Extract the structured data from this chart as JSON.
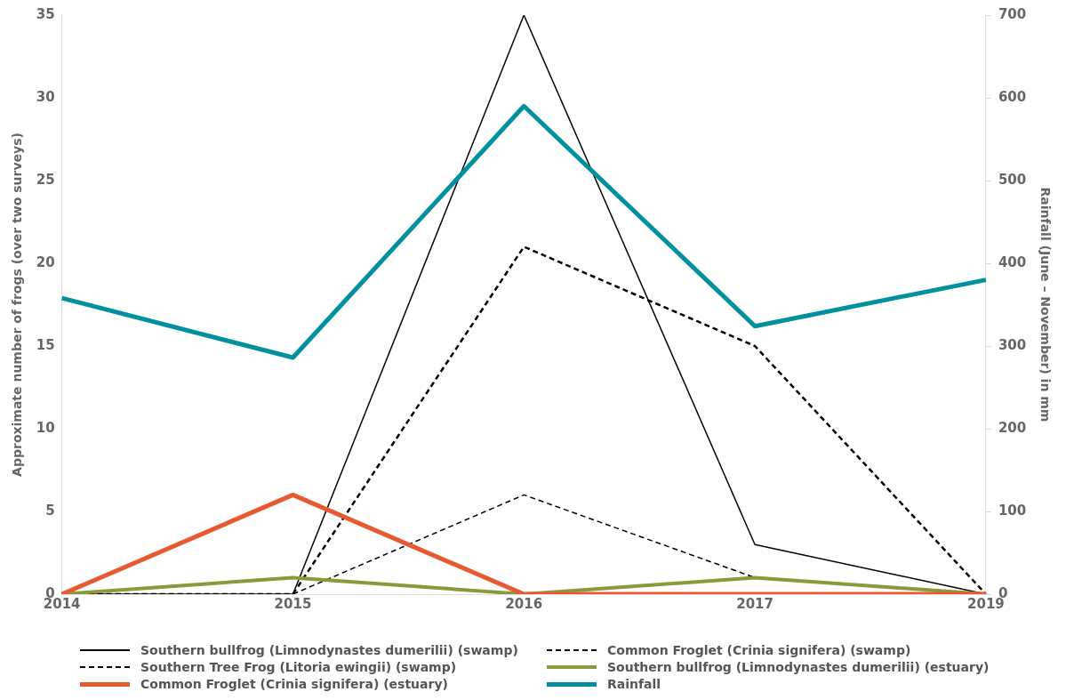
{
  "chart_data": {
    "type": "line",
    "categories": [
      "2014",
      "2015",
      "2016",
      "2017",
      "2019"
    ],
    "ylabel": "Approximate number of frogs (over two surveys)",
    "y2label": "Rainfall (June – November) in mm",
    "ylim": [
      0,
      35
    ],
    "yticks": [
      0,
      5,
      10,
      15,
      20,
      25,
      30,
      35
    ],
    "y2lim": [
      0,
      700
    ],
    "y2ticks": [
      0,
      100,
      200,
      300,
      400,
      500,
      600,
      700
    ],
    "grid": false,
    "legend": "bottom",
    "marker": "none",
    "series": [
      {
        "name": "Southern bullfrog (Limnodynastes dumerilii) (swamp)",
        "color": "#000000",
        "line_style": "solid",
        "values": [
          0,
          0,
          35,
          3,
          0
        ]
      },
      {
        "name": "Common Froglet (Crinia signifera) (swamp)",
        "color": "#000000",
        "line_style": "dashed",
        "values": [
          0,
          0,
          21,
          15,
          0
        ]
      },
      {
        "name": "Southern Tree Frog (Litoria ewingii) (swamp)",
        "color": "#000000",
        "line_style": "dashed",
        "values": [
          0,
          0,
          6,
          1,
          0
        ]
      },
      {
        "name": "Southern bullfrog (Limnodynastes dumerilii) (estuary)",
        "color": "#8a9a3a",
        "line_style": "solid",
        "values": [
          0,
          1,
          0,
          1,
          0
        ]
      },
      {
        "name": "Common Froglet (Crinia signifera) (estuary)",
        "color": "#e65a32",
        "line_style": "solid",
        "values": [
          0,
          6,
          0,
          0,
          0
        ]
      },
      {
        "name": "Rainfall",
        "color": "#00909e",
        "line_style": "solid",
        "axis": "y2",
        "values": [
          358,
          286,
          590,
          324,
          380
        ]
      }
    ]
  }
}
